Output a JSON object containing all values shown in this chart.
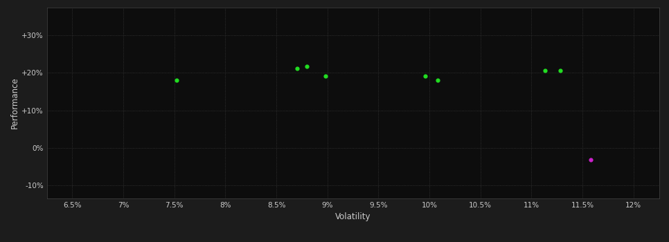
{
  "background_color": "#1c1c1c",
  "plot_bg_color": "#0d0d0d",
  "grid_color": "#3a3a3a",
  "text_color": "#cccccc",
  "xlabel": "Volatility",
  "ylabel": "Performance",
  "xlim": [
    0.0625,
    0.1225
  ],
  "ylim": [
    -0.135,
    0.375
  ],
  "xticks": [
    0.065,
    0.07,
    0.075,
    0.08,
    0.085,
    0.09,
    0.095,
    0.1,
    0.105,
    0.11,
    0.115,
    0.12
  ],
  "xtick_labels": [
    "6.5%",
    "7%",
    "7.5%",
    "8%",
    "8.5%",
    "9%",
    "9.5%",
    "10%",
    "10.5%",
    "11%",
    "11.5%",
    "12%"
  ],
  "yticks": [
    -0.1,
    0.0,
    0.1,
    0.2,
    0.3
  ],
  "ytick_labels": [
    "-10%",
    "0%",
    "+10%",
    "+20%",
    "+30%"
  ],
  "green_points": [
    [
      0.0752,
      0.18
    ],
    [
      0.087,
      0.212
    ],
    [
      0.088,
      0.218
    ],
    [
      0.0898,
      0.192
    ],
    [
      0.0996,
      0.192
    ],
    [
      0.1008,
      0.181
    ],
    [
      0.1113,
      0.207
    ],
    [
      0.1128,
      0.206
    ]
  ],
  "magenta_points": [
    [
      0.1158,
      -0.032
    ]
  ],
  "green_color": "#22dd22",
  "magenta_color": "#cc22cc",
  "dot_size": 12
}
